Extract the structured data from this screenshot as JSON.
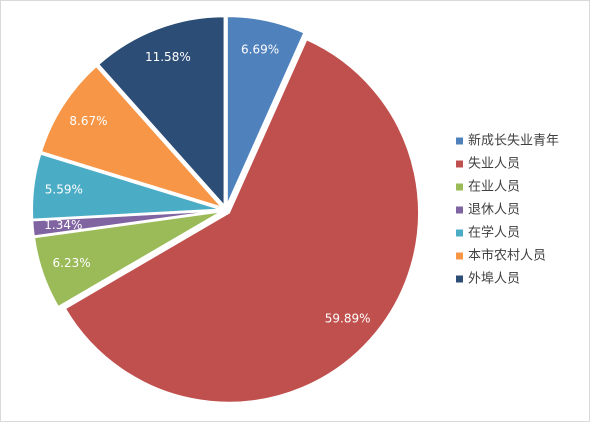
{
  "chart_data": {
    "type": "pie",
    "categories": [
      "新成长失业青年",
      "失业人员",
      "在业人员",
      "退休人员",
      "在学人员",
      "本市农村人员",
      "外埠人员"
    ],
    "values": [
      6.69,
      59.89,
      6.23,
      1.34,
      5.59,
      8.67,
      11.58
    ],
    "value_labels": [
      "6.69%",
      "59.89%",
      "6.23%",
      "1.34%",
      "5.59%",
      "8.67%",
      "11.58%"
    ],
    "colors": [
      "#4f81bd",
      "#c0504d",
      "#9bbb59",
      "#8064a2",
      "#4bacc6",
      "#f79646",
      "#2c4d75"
    ],
    "legend": "right"
  }
}
